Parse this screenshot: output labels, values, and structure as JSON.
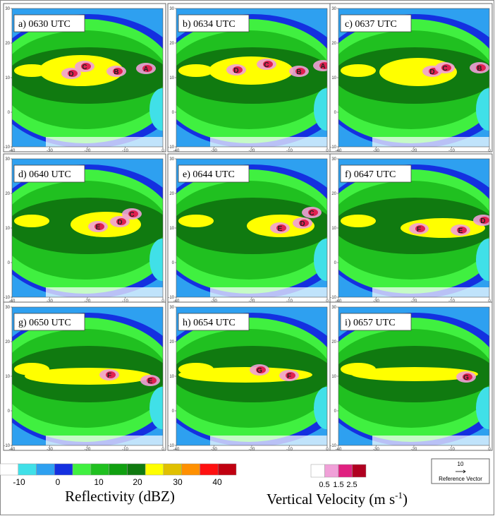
{
  "panels": [
    {
      "title": "a) 0630 UTC",
      "cells": [
        "D",
        "C",
        "B",
        "A"
      ]
    },
    {
      "title": "b) 0634 UTC",
      "cells": [
        "D",
        "C",
        "B",
        "A"
      ]
    },
    {
      "title": "c) 0637 UTC",
      "cells": [
        "D",
        "C",
        "B"
      ]
    },
    {
      "title": "d) 0640 UTC",
      "cells": [
        "E",
        "D",
        "C"
      ]
    },
    {
      "title": "e) 0644 UTC",
      "cells": [
        "E",
        "D",
        "C"
      ]
    },
    {
      "title": "f) 0647 UTC",
      "cells": [
        "F",
        "E",
        "D"
      ]
    },
    {
      "title": "g) 0650 UTC",
      "cells": [
        "F",
        "E"
      ]
    },
    {
      "title": "h) 0654 UTC",
      "cells": [
        "G",
        "F"
      ]
    },
    {
      "title": "i) 0657 UTC",
      "cells": [
        "G"
      ]
    }
  ],
  "xticks": [
    -40,
    -30,
    -20,
    -10,
    0
  ],
  "yticks": [
    30,
    20,
    10,
    0,
    -10
  ],
  "reflectivity": {
    "label": "Reflectivity (dBZ)",
    "ticks": [
      -10,
      0,
      10,
      20,
      30,
      40
    ],
    "colors": [
      "#ffffff",
      "#40e0e8",
      "#2ea0f0",
      "#1430e0",
      "#40f040",
      "#20c020",
      "#10a010",
      "#107a10",
      "#ffff00",
      "#e0c000",
      "#ff9000",
      "#ff1010",
      "#c00010"
    ]
  },
  "velocity": {
    "label": "Vertical Velocity (m s",
    "exponent": "-1",
    "close": ")",
    "ticks": [
      "0.5",
      "1.5",
      "2.5"
    ],
    "colors": [
      "#ffffff",
      "#f0a0d8",
      "#e02080",
      "#b00020"
    ]
  },
  "reference": {
    "value": "10",
    "label": "Reference Vector"
  }
}
